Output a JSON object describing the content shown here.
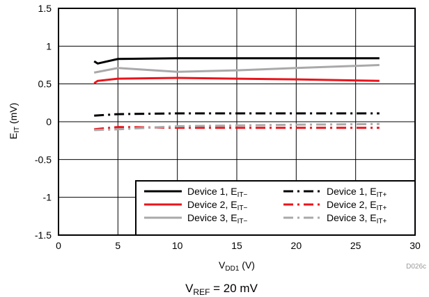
{
  "chart_data": {
    "type": "line",
    "title": "",
    "caption_main": "V",
    "caption_sub": "REF",
    "caption_rest": " = 20 mV",
    "xlabel_main": "V",
    "xlabel_sub": "DD1",
    "xlabel_rest": " (V)",
    "ylabel_main": "E",
    "ylabel_sub": "IT",
    "ylabel_rest": " (mV)",
    "figure_id": "D026c",
    "xlim": [
      0,
      30
    ],
    "ylim": [
      -1.5,
      1.5
    ],
    "xticks": [
      "0",
      "5",
      "10",
      "15",
      "20",
      "25",
      "30"
    ],
    "yticks": [
      "-1.5",
      "-1",
      "-0.5",
      "0",
      "0.5",
      "1",
      "1.5"
    ],
    "grid": true,
    "legend_position": "bottom-right",
    "series": [
      {
        "label_main": "Device 1, E",
        "label_sub": "IT−",
        "color": "#000000",
        "dash": "solid",
        "points": [
          [
            3,
            0.8
          ],
          [
            3.3,
            0.77
          ],
          [
            5,
            0.83
          ],
          [
            10,
            0.84
          ],
          [
            15,
            0.84
          ],
          [
            20,
            0.84
          ],
          [
            27,
            0.84
          ]
        ]
      },
      {
        "label_main": "Device 1, E",
        "label_sub": "IT+",
        "color": "#000000",
        "dash": "dashdot",
        "points": [
          [
            3,
            0.08
          ],
          [
            5,
            0.1
          ],
          [
            10,
            0.11
          ],
          [
            15,
            0.11
          ],
          [
            20,
            0.11
          ],
          [
            27,
            0.11
          ]
        ]
      },
      {
        "label_main": "Device 2, E",
        "label_sub": "IT−",
        "color": "#e8141b",
        "dash": "solid",
        "points": [
          [
            3,
            0.51
          ],
          [
            3.3,
            0.54
          ],
          [
            5,
            0.57
          ],
          [
            10,
            0.58
          ],
          [
            15,
            0.57
          ],
          [
            20,
            0.56
          ],
          [
            27,
            0.54
          ]
        ]
      },
      {
        "label_main": "Device 2, E",
        "label_sub": "IT+",
        "color": "#e8141b",
        "dash": "dashdot",
        "points": [
          [
            3,
            -0.1
          ],
          [
            5,
            -0.07
          ],
          [
            10,
            -0.08
          ],
          [
            15,
            -0.08
          ],
          [
            20,
            -0.08
          ],
          [
            27,
            -0.08
          ]
        ]
      },
      {
        "label_main": "Device 3, E",
        "label_sub": "IT−",
        "color": "#a9a9a9",
        "dash": "solid",
        "points": [
          [
            3,
            0.65
          ],
          [
            5,
            0.71
          ],
          [
            10,
            0.66
          ],
          [
            15,
            0.68
          ],
          [
            20,
            0.71
          ],
          [
            27,
            0.75
          ]
        ]
      },
      {
        "label_main": "Device 3, E",
        "label_sub": "IT+",
        "color": "#a9a9a9",
        "dash": "dashdot",
        "points": [
          [
            3,
            -0.11
          ],
          [
            5,
            -0.1
          ],
          [
            10,
            -0.06
          ],
          [
            15,
            -0.05
          ],
          [
            20,
            -0.04
          ],
          [
            27,
            -0.03
          ]
        ]
      }
    ]
  }
}
